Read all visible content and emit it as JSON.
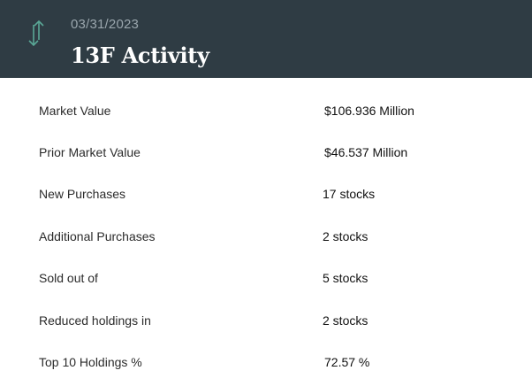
{
  "header": {
    "date": "03/31/2023",
    "title": "13F Activity",
    "icon": "up-down-arrows-icon",
    "icon_color": "#5aa897",
    "background": "#2f3c44"
  },
  "rows": [
    {
      "label": "Market Value",
      "value": "$106.936 Million"
    },
    {
      "label": "Prior Market Value",
      "value": "$46.537 Million"
    },
    {
      "label": "New Purchases",
      "value": "17 stocks"
    },
    {
      "label": "Additional Purchases",
      "value": "2 stocks"
    },
    {
      "label": "Sold out of",
      "value": "5 stocks"
    },
    {
      "label": "Reduced holdings in",
      "value": "2 stocks"
    },
    {
      "label": "Top 10 Holdings %",
      "value": "72.57 %"
    }
  ]
}
